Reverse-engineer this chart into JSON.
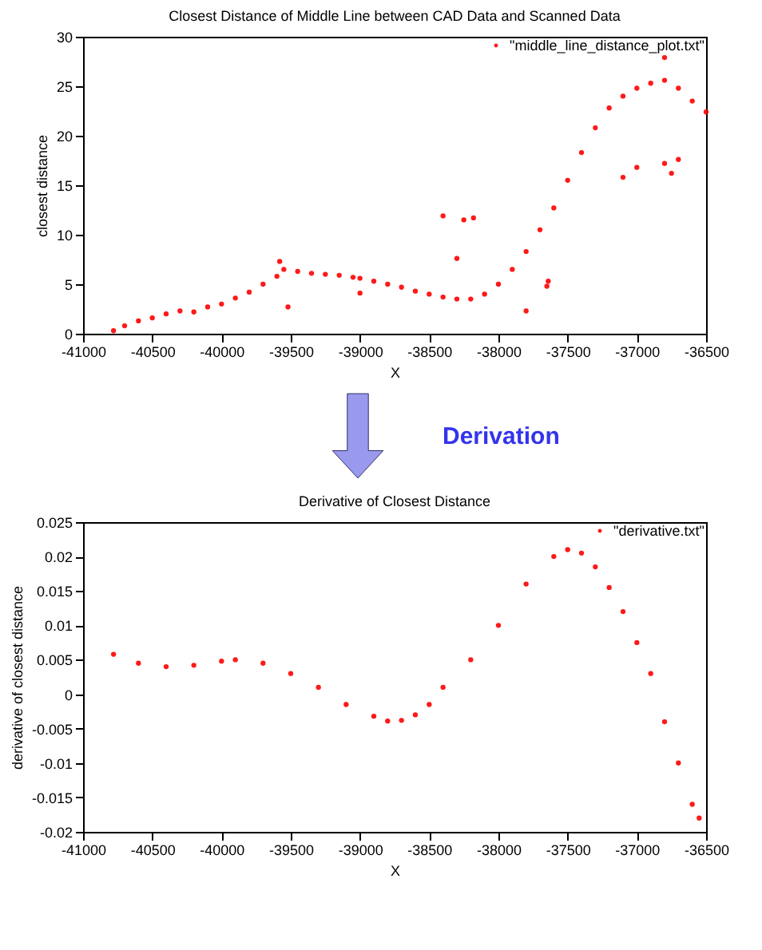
{
  "chart_data": [
    {
      "type": "scatter",
      "title": "Closest Distance of Middle Line between CAD Data and Scanned Data",
      "xlabel": "X",
      "ylabel": "closest distance",
      "xlim": [
        -41000,
        -36500
      ],
      "ylim": [
        0,
        30
      ],
      "xticks": [
        -41000,
        -40500,
        -40000,
        -39500,
        -39000,
        -38500,
        -38000,
        -37500,
        -37000,
        -36500
      ],
      "yticks": [
        0,
        5,
        10,
        15,
        20,
        25,
        30
      ],
      "grid": false,
      "legend": "top right",
      "marker": "circle",
      "series": [
        {
          "name": "\"middle_line_distance_plot.txt\"",
          "color": "#ff0000",
          "x": [
            -40780,
            -40700,
            -40600,
            -40500,
            -40400,
            -40300,
            -40200,
            -40100,
            -40000,
            -39900,
            -39800,
            -39700,
            -39600,
            -39550,
            -39450,
            -39350,
            -39250,
            -39150,
            -39050,
            -39000,
            -38900,
            -38800,
            -38700,
            -38600,
            -38500,
            -38400,
            -38300,
            -38200,
            -38100,
            -38000,
            -37900,
            -37800,
            -37700,
            -37600,
            -37500,
            -37400,
            -37300,
            -37200,
            -37100,
            -37000,
            -36900,
            -36800,
            -36700,
            -36600,
            -36500,
            -39580,
            -39520,
            -39000,
            -38400,
            -38300,
            -38250,
            -38180,
            -37800,
            -37650,
            -37640,
            -37100,
            -37000,
            -36800,
            -36800,
            -36700,
            -36750
          ],
          "values": [
            0.3,
            0.8,
            1.3,
            1.6,
            2.0,
            2.3,
            2.2,
            2.7,
            3.0,
            3.6,
            4.2,
            5.0,
            5.8,
            6.5,
            6.3,
            6.1,
            6.0,
            5.9,
            5.7,
            5.6,
            5.3,
            5.0,
            4.7,
            4.3,
            4.0,
            3.7,
            3.5,
            3.5,
            4.0,
            5.0,
            6.5,
            8.3,
            10.5,
            12.7,
            15.5,
            18.3,
            20.8,
            22.8,
            24.0,
            24.8,
            25.3,
            25.6,
            24.8,
            23.5,
            22.4,
            7.3,
            2.7,
            4.1,
            11.9,
            7.6,
            11.5,
            11.7,
            2.3,
            4.8,
            5.3,
            15.8,
            16.8,
            17.2,
            27.9,
            17.6,
            16.2
          ]
        }
      ]
    },
    {
      "type": "scatter",
      "title": "Derivative of Closest Distance",
      "xlabel": "X",
      "ylabel": "derivative of closest distance",
      "xlim": [
        -41000,
        -36500
      ],
      "ylim": [
        -0.02,
        0.025
      ],
      "xticks": [
        -41000,
        -40500,
        -40000,
        -39500,
        -39000,
        -38500,
        -38000,
        -37500,
        -37000,
        -36500
      ],
      "yticks": [
        -0.02,
        -0.015,
        -0.01,
        -0.005,
        0,
        0.005,
        0.01,
        0.015,
        0.02,
        0.025
      ],
      "grid": false,
      "legend": "top right",
      "marker": "circle",
      "annotations": [
        "Derivation"
      ],
      "series": [
        {
          "name": "\"derivative.txt\"",
          "color": "#ff0000",
          "x": [
            -40780,
            -40600,
            -40400,
            -40200,
            -40000,
            -39900,
            -39700,
            -39500,
            -39300,
            -39100,
            -38900,
            -38800,
            -38700,
            -38600,
            -38500,
            -38400,
            -38200,
            -38000,
            -37800,
            -37600,
            -37500,
            -37400,
            -37300,
            -37200,
            -37100,
            -37000,
            -36900,
            -36800,
            -36700,
            -36600,
            -36550
          ],
          "values": [
            0.0058,
            0.0045,
            0.004,
            0.0042,
            0.0048,
            0.005,
            0.0045,
            0.003,
            0.001,
            -0.0015,
            -0.0032,
            -0.0039,
            -0.0038,
            -0.003,
            -0.0015,
            0.001,
            0.005,
            0.01,
            0.016,
            0.02,
            0.021,
            0.0205,
            0.0185,
            0.0155,
            0.012,
            0.0075,
            0.003,
            -0.004,
            -0.01,
            -0.016,
            -0.018
          ]
        }
      ]
    }
  ]
}
